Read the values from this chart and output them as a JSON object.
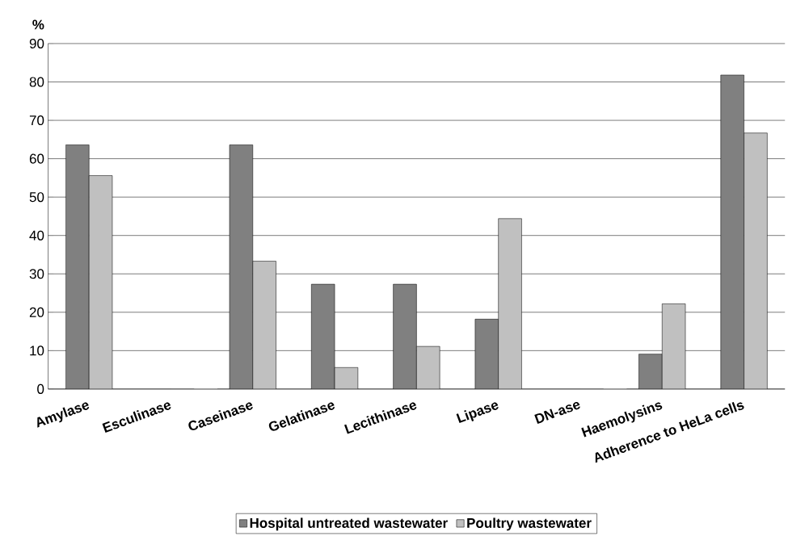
{
  "chart_data": {
    "type": "bar",
    "ylabel": "%",
    "categories": [
      "Amylase",
      "Esculinase",
      "Caseinase",
      "Gelatinase",
      "Lecithinase",
      "Lipase",
      "DN-ase",
      "Haemolysins",
      "Adherence to HeLa cells"
    ],
    "series": [
      {
        "name": "Hospital untreated wastewater",
        "color": "#808080",
        "values": [
          63.6,
          0,
          63.6,
          27.3,
          27.3,
          18.2,
          0,
          9.1,
          81.8
        ]
      },
      {
        "name": "Poultry wastewater",
        "color": "#c0c0c0",
        "values": [
          55.6,
          0,
          33.3,
          5.6,
          11.1,
          44.4,
          0,
          22.2,
          66.7
        ]
      }
    ],
    "ylim": [
      0,
      90
    ],
    "yticks": [
      0,
      10,
      20,
      30,
      40,
      50,
      60,
      70,
      80,
      90
    ],
    "grid": "y",
    "legend": "bottom"
  }
}
